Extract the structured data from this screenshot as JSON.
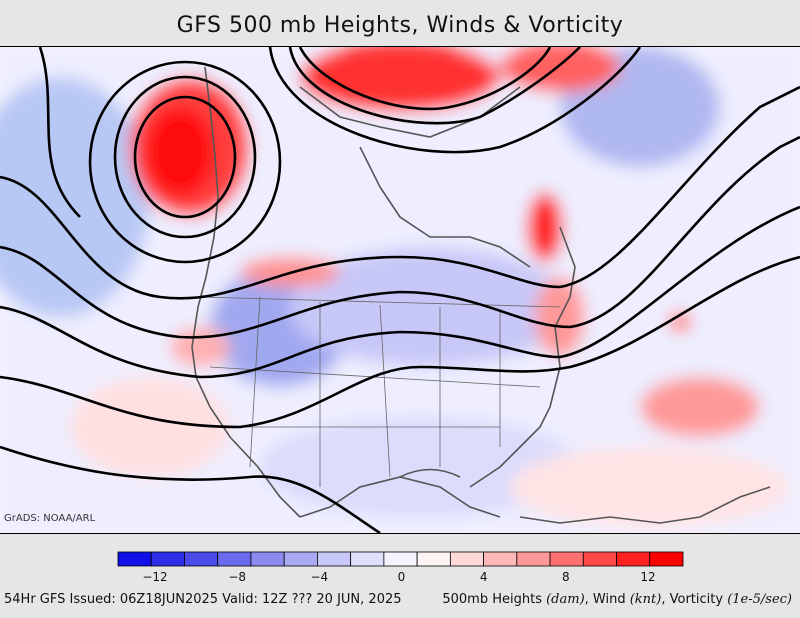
{
  "title": "GFS 500 mb Heights, Winds & Vorticity",
  "credit": "GrADS: NOAA/ARL",
  "colorbar": {
    "labels": [
      "−12",
      "−8",
      "−4",
      "0",
      "4",
      "8",
      "12"
    ],
    "colors": [
      "#1010e8",
      "#2e2ee8",
      "#4a4ae8",
      "#6a6aec",
      "#8a8af0",
      "#aaaaf4",
      "#c8c8f8",
      "#e0e0fc",
      "#f4f4ff",
      "#fff4f4",
      "#ffd8d8",
      "#ffb8b8",
      "#ff9898",
      "#ff7070",
      "#ff4848",
      "#ff2020",
      "#ff0000"
    ]
  },
  "footer": {
    "left": "54Hr GFS Issued: 06Z18JUN2025 Valid: 12Z ??? 20 JUN, 2025",
    "right_prefix": "500mb Heights ",
    "unit_heights": "(dam)",
    "wind": ", Wind ",
    "unit_wind": "(knt)",
    "vort": ", Vorticity ",
    "unit_vort": "(1e-5/sec)"
  }
}
